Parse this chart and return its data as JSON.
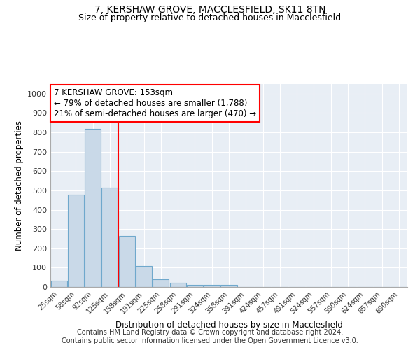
{
  "title1": "7, KERSHAW GROVE, MACCLESFIELD, SK11 8TN",
  "title2": "Size of property relative to detached houses in Macclesfield",
  "xlabel": "Distribution of detached houses by size in Macclesfield",
  "ylabel": "Number of detached properties",
  "categories": [
    "25sqm",
    "58sqm",
    "92sqm",
    "125sqm",
    "158sqm",
    "191sqm",
    "225sqm",
    "258sqm",
    "291sqm",
    "324sqm",
    "358sqm",
    "391sqm",
    "424sqm",
    "457sqm",
    "491sqm",
    "524sqm",
    "557sqm",
    "590sqm",
    "624sqm",
    "657sqm",
    "690sqm"
  ],
  "values": [
    32,
    478,
    820,
    515,
    265,
    110,
    40,
    22,
    12,
    10,
    10,
    0,
    0,
    0,
    0,
    0,
    0,
    0,
    0,
    0,
    0
  ],
  "bar_color": "#c9d9e8",
  "bar_edge_color": "#6fa8cc",
  "vline_x": 3.5,
  "vline_color": "red",
  "annotation_text": "7 KERSHAW GROVE: 153sqm\n← 79% of detached houses are smaller (1,788)\n21% of semi-detached houses are larger (470) →",
  "annotation_box_color": "white",
  "annotation_box_edge_color": "red",
  "ylim": [
    0,
    1050
  ],
  "yticks": [
    0,
    100,
    200,
    300,
    400,
    500,
    600,
    700,
    800,
    900,
    1000
  ],
  "background_color": "#e8eef5",
  "footer1": "Contains HM Land Registry data © Crown copyright and database right 2024.",
  "footer2": "Contains public sector information licensed under the Open Government Licence v3.0.",
  "title1_fontsize": 10,
  "title2_fontsize": 9
}
